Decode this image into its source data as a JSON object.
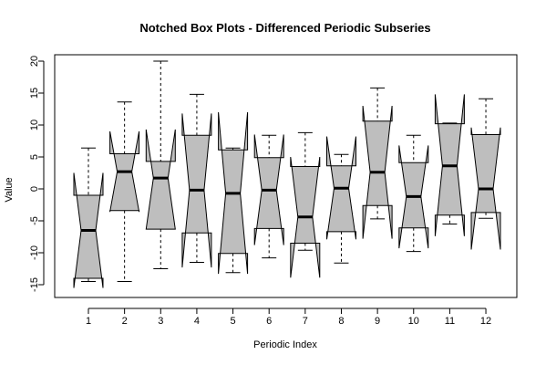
{
  "chart_data": {
    "type": "box",
    "title": "Notched Box Plots - Differenced Periodic Subseries",
    "xlabel": "Periodic Index",
    "ylabel": "Value",
    "categories": [
      "1",
      "2",
      "3",
      "4",
      "5",
      "6",
      "7",
      "8",
      "9",
      "10",
      "11",
      "12"
    ],
    "ylim": [
      -17,
      21
    ],
    "yticks": [
      -15,
      -10,
      -5,
      0,
      5,
      10,
      15,
      20
    ],
    "notched": true,
    "fill_color": "#bebebe",
    "boxes": [
      {
        "whisker_low": -14.5,
        "q1": -14.0,
        "median": -6.5,
        "q3": -1.0,
        "whisker_high": 6.4,
        "notch_low": -15.5,
        "notch_high": 2.5
      },
      {
        "whisker_low": -14.5,
        "q1": -3.4,
        "median": 2.7,
        "q3": 5.5,
        "whisker_high": 13.6,
        "notch_low": -3.6,
        "notch_high": 9.0
      },
      {
        "whisker_low": -12.5,
        "q1": -6.3,
        "median": 1.7,
        "q3": 4.3,
        "whisker_high": 20.0,
        "notch_low": -6.3,
        "notch_high": 9.3
      },
      {
        "whisker_low": -11.5,
        "q1": -6.9,
        "median": -0.2,
        "q3": 8.4,
        "whisker_high": 14.8,
        "notch_low": -12.3,
        "notch_high": 11.8
      },
      {
        "whisker_low": -13.1,
        "q1": -10.1,
        "median": -0.7,
        "q3": 6.1,
        "whisker_high": 6.4,
        "notch_low": -13.3,
        "notch_high": 12.0
      },
      {
        "whisker_low": -10.8,
        "q1": -6.2,
        "median": -0.2,
        "q3": 4.9,
        "whisker_high": 8.4,
        "notch_low": -8.8,
        "notch_high": 8.5
      },
      {
        "whisker_low": -9.6,
        "q1": -8.5,
        "median": -4.4,
        "q3": 3.5,
        "whisker_high": 8.8,
        "notch_low": -13.9,
        "notch_high": 5.0
      },
      {
        "whisker_low": -11.6,
        "q1": -6.7,
        "median": 0.1,
        "q3": 3.6,
        "whisker_high": 5.4,
        "notch_low": -7.9,
        "notch_high": 8.2
      },
      {
        "whisker_low": -4.7,
        "q1": -2.6,
        "median": 2.6,
        "q3": 10.6,
        "whisker_high": 15.8,
        "notch_low": -7.8,
        "notch_high": 13.0
      },
      {
        "whisker_low": -9.8,
        "q1": -6.1,
        "median": -1.2,
        "q3": 4.1,
        "whisker_high": 8.4,
        "notch_low": -9.3,
        "notch_high": 6.8
      },
      {
        "whisker_low": -5.5,
        "q1": -4.1,
        "median": 3.6,
        "q3": 10.2,
        "whisker_high": 10.3,
        "notch_low": -7.4,
        "notch_high": 14.8
      },
      {
        "whisker_low": -4.6,
        "q1": -3.7,
        "median": 0.0,
        "q3": 8.5,
        "whisker_high": 14.1,
        "notch_low": -9.5,
        "notch_high": 9.6
      }
    ]
  }
}
